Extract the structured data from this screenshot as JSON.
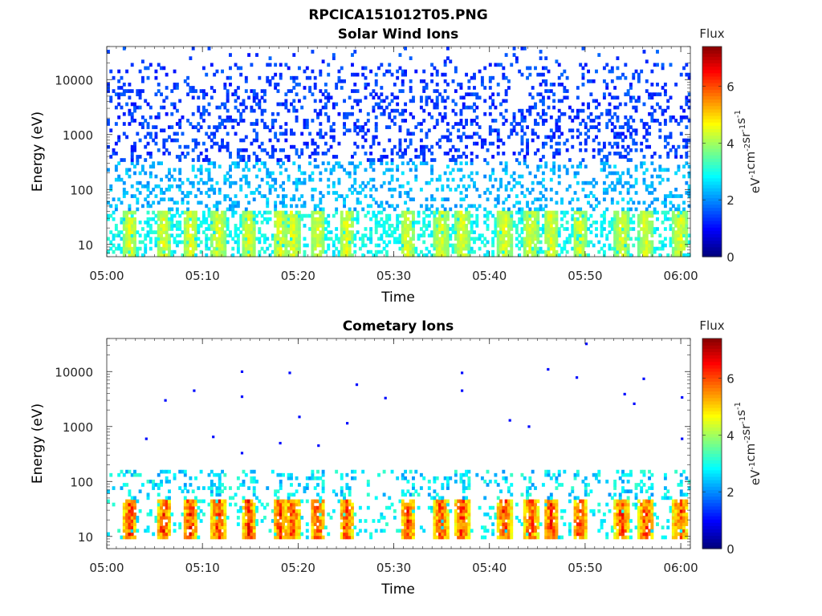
{
  "figure_title": "RPCICA151012T05.PNG",
  "panels": [
    {
      "title": "Solar Wind Ions",
      "xlabel": "Time",
      "ylabel": "Energy (eV)"
    },
    {
      "title": "Cometary Ions",
      "xlabel": "Time",
      "ylabel": "Energy (eV)"
    }
  ],
  "colorbar": {
    "title": "Flux",
    "label_parts": [
      "eV",
      "-1",
      "cm",
      "-2",
      "sr",
      "-1",
      "s",
      "-1"
    ],
    "ticks": [
      "0",
      "2",
      "4",
      "6"
    ],
    "range": [
      0,
      7.4
    ]
  },
  "chart_data": [
    {
      "type": "heatmap",
      "title": "Solar Wind Ions",
      "xlabel": "Time",
      "ylabel": "Energy (eV)",
      "x_ticks": [
        "05:00",
        "05:10",
        "05:20",
        "05:30",
        "05:40",
        "05:50",
        "06:00"
      ],
      "y_ticks": [
        "10",
        "100",
        "1000",
        "10000"
      ],
      "xlim": [
        "05:00",
        "06:01"
      ],
      "ylim": [
        6,
        40000
      ],
      "yscale": "log",
      "colormap": "jet",
      "flux_range": [
        0,
        7.4
      ],
      "bright_bursts_minutes": [
        2.3,
        5.8,
        8.6,
        11.5,
        14.7,
        18.0,
        19.3,
        21.9,
        24.9,
        31.3,
        34.8,
        37.0,
        41.4,
        44.2,
        46.3,
        49.3,
        53.7,
        56.2,
        59.8
      ],
      "bright_band_energy_eV": [
        12,
        40
      ],
      "sparse_counts_energy_eV": [
        40,
        40000
      ],
      "peak_flux_level": 4.8
    },
    {
      "type": "heatmap",
      "title": "Cometary Ions",
      "xlabel": "Time",
      "ylabel": "Energy (eV)",
      "x_ticks": [
        "05:00",
        "05:10",
        "05:20",
        "05:30",
        "05:40",
        "05:50",
        "06:00"
      ],
      "y_ticks": [
        "10",
        "100",
        "1000",
        "10000"
      ],
      "xlim": [
        "05:00",
        "06:01"
      ],
      "ylim": [
        6,
        40000
      ],
      "yscale": "log",
      "colormap": "jet",
      "flux_range": [
        0,
        7.4
      ],
      "bright_bursts_minutes": [
        2.3,
        5.8,
        8.6,
        11.5,
        14.7,
        18.0,
        19.3,
        21.9,
        24.9,
        31.3,
        34.8,
        37.0,
        41.4,
        44.2,
        46.3,
        49.3,
        53.7,
        56.2,
        59.8
      ],
      "burst_energy_eV": [
        10,
        45
      ],
      "peak_flux_level": 6.9,
      "isolated_counts": [
        {
          "t": "05:04",
          "e": 600
        },
        {
          "t": "05:06",
          "e": 3000
        },
        {
          "t": "05:09",
          "e": 4500
        },
        {
          "t": "05:11",
          "e": 650
        },
        {
          "t": "05:14",
          "e": 10000
        },
        {
          "t": "05:14",
          "e": 3500
        },
        {
          "t": "05:14",
          "e": 330
        },
        {
          "t": "05:18",
          "e": 500
        },
        {
          "t": "05:19",
          "e": 9500
        },
        {
          "t": "05:20",
          "e": 1500
        },
        {
          "t": "05:22",
          "e": 450
        },
        {
          "t": "05:25",
          "e": 1150
        },
        {
          "t": "05:26",
          "e": 5800
        },
        {
          "t": "05:29",
          "e": 3300
        },
        {
          "t": "05:37",
          "e": 9500
        },
        {
          "t": "05:37",
          "e": 4500
        },
        {
          "t": "05:42",
          "e": 1300
        },
        {
          "t": "05:44",
          "e": 1000
        },
        {
          "t": "05:46",
          "e": 11000
        },
        {
          "t": "05:49",
          "e": 7800
        },
        {
          "t": "05:50",
          "e": 32000
        },
        {
          "t": "05:54",
          "e": 3900
        },
        {
          "t": "05:55",
          "e": 2600
        },
        {
          "t": "05:56",
          "e": 7400
        },
        {
          "t": "06:00",
          "e": 3400
        },
        {
          "t": "06:00",
          "e": 600
        }
      ]
    }
  ]
}
